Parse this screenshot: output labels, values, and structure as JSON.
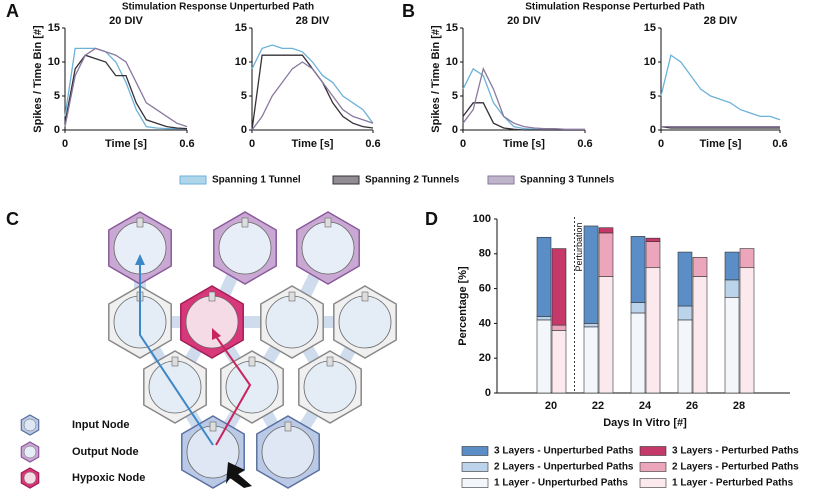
{
  "panel_labels": [
    "A",
    "B",
    "C",
    "D"
  ],
  "group_titles": [
    "Stimulation Response Unperturbed Path",
    "Stimulation Response Perturbed Path"
  ],
  "line_legend": [
    {
      "name": "Spanning 1 Tunnel",
      "color": "#6cb2d8"
    },
    {
      "name": "Spanning 2 Tunnels",
      "color": "#36303a"
    },
    {
      "name": "Spanning 3 Tunnels",
      "color": "#8a789e"
    }
  ],
  "chart_data": [
    {
      "type": "line",
      "title": "20 DIV",
      "xlabel": "Time [s]",
      "ylabel": "Spikes / Time Bin [#]",
      "x": [
        0,
        0.05,
        0.1,
        0.15,
        0.2,
        0.25,
        0.3,
        0.35,
        0.4,
        0.45,
        0.5,
        0.55,
        0.6
      ],
      "xlim": [
        0,
        0.6
      ],
      "xticks": [
        0,
        0.6
      ],
      "ylim": [
        0,
        15
      ],
      "yticks": [
        0,
        5,
        10,
        15
      ],
      "series": [
        {
          "values": [
            2,
            12,
            12,
            12,
            11.5,
            10,
            7,
            3,
            0.5,
            0.3,
            0.2,
            0.2,
            0.2
          ]
        },
        {
          "values": [
            1,
            9,
            11,
            10.5,
            10,
            8,
            8,
            4,
            1.5,
            1,
            0.5,
            0.3,
            0.2
          ]
        },
        {
          "values": [
            0.5,
            8,
            11,
            12,
            11.5,
            11,
            10,
            7,
            4,
            3,
            2,
            1,
            0.5
          ]
        }
      ]
    },
    {
      "type": "line",
      "title": "28 DIV",
      "xlabel": "Time [s]",
      "x": [
        0,
        0.05,
        0.1,
        0.15,
        0.2,
        0.25,
        0.3,
        0.35,
        0.4,
        0.45,
        0.5,
        0.55,
        0.6
      ],
      "xlim": [
        0,
        0.6
      ],
      "xticks": [
        0,
        0.6
      ],
      "ylim": [
        0,
        15
      ],
      "yticks": [
        0,
        5,
        10,
        15
      ],
      "series": [
        {
          "values": [
            9,
            12,
            12.5,
            12,
            12,
            11.5,
            10,
            8,
            7,
            5,
            4,
            3,
            1
          ]
        },
        {
          "values": [
            0,
            11,
            11,
            11,
            11,
            11,
            9,
            7,
            4,
            2,
            1,
            0.5,
            0.3
          ]
        },
        {
          "values": [
            0,
            2,
            5,
            7,
            9,
            10,
            9,
            7,
            5,
            3,
            2,
            1.5,
            1
          ]
        }
      ]
    },
    {
      "type": "line",
      "title": "20 DIV",
      "xlabel": "Time [s]",
      "ylabel": "Spikes / Time Bin [#]",
      "x": [
        0,
        0.05,
        0.1,
        0.15,
        0.2,
        0.25,
        0.3,
        0.35,
        0.4,
        0.45,
        0.5,
        0.55,
        0.6
      ],
      "xlim": [
        0,
        0.6
      ],
      "xticks": [
        0,
        0.6
      ],
      "ylim": [
        0,
        15
      ],
      "yticks": [
        0,
        5,
        10,
        15
      ],
      "series": [
        {
          "values": [
            6,
            9,
            8,
            4,
            2,
            0.5,
            0.2,
            0.1,
            0,
            0,
            0,
            0,
            0
          ]
        },
        {
          "values": [
            2,
            4,
            4,
            1,
            0.3,
            0.1,
            0,
            0,
            0,
            0,
            0,
            0,
            0
          ]
        },
        {
          "values": [
            1,
            3,
            9,
            6,
            2,
            1,
            0.5,
            0.3,
            0.2,
            0.2,
            0.1,
            0.1,
            0.1
          ]
        }
      ]
    },
    {
      "type": "line",
      "title": "28 DIV",
      "xlabel": "Time [s]",
      "x": [
        0,
        0.05,
        0.1,
        0.15,
        0.2,
        0.25,
        0.3,
        0.35,
        0.4,
        0.45,
        0.5,
        0.55,
        0.6
      ],
      "xlim": [
        0,
        0.6
      ],
      "xticks": [
        0,
        0.6
      ],
      "ylim": [
        0,
        15
      ],
      "yticks": [
        0,
        5,
        10,
        15
      ],
      "series": [
        {
          "values": [
            5,
            11,
            10,
            8,
            6,
            5,
            4.5,
            4,
            3,
            2.5,
            2,
            2,
            1.5
          ]
        },
        {
          "values": [
            0.5,
            0.3,
            0.3,
            0.3,
            0.3,
            0.3,
            0.3,
            0.3,
            0.3,
            0.3,
            0.3,
            0.3,
            0.3
          ]
        },
        {
          "values": [
            0.5,
            0.5,
            0.5,
            0.5,
            0.5,
            0.5,
            0.5,
            0.5,
            0.5,
            0.5,
            0.5,
            0.5,
            0.5
          ]
        }
      ]
    },
    {
      "type": "bar",
      "xlabel": "Days In Vitro [#]",
      "ylabel": "Percentage [%]",
      "annotation": "Perturbation",
      "categories": [
        "20",
        "22",
        "24",
        "26",
        "28"
      ],
      "ylim": [
        0,
        100
      ],
      "yticks": [
        0,
        20,
        40,
        60,
        80,
        100
      ],
      "series": [
        {
          "name": "1 Layer - Unperturbed Paths",
          "color": "#f3f7fc",
          "values": [
            42,
            38,
            46,
            42,
            55
          ]
        },
        {
          "name": "2 Layers - Unperturbed Paths",
          "color": "#bcd3ec",
          "values": [
            2,
            2,
            6,
            8,
            10
          ]
        },
        {
          "name": "3 Layers - Unperturbed Paths",
          "color": "#5b8ec6",
          "values": [
            45.5,
            56,
            38,
            31,
            16
          ]
        },
        {
          "name": "1 Layer - Perturbed Paths",
          "color": "#fbe9ee",
          "values": [
            36,
            67,
            72,
            67,
            72
          ]
        },
        {
          "name": "2 Layers - Perturbed Paths",
          "color": "#eba6bc",
          "values": [
            3,
            25,
            15,
            11,
            11
          ]
        },
        {
          "name": "3 Layers - Perturbed Paths",
          "color": "#c4386a",
          "values": [
            44,
            3,
            2,
            0,
            0
          ]
        }
      ]
    }
  ],
  "diagram": {
    "legend": [
      "Input Node",
      "Output Node",
      "Hypoxic Node"
    ]
  }
}
